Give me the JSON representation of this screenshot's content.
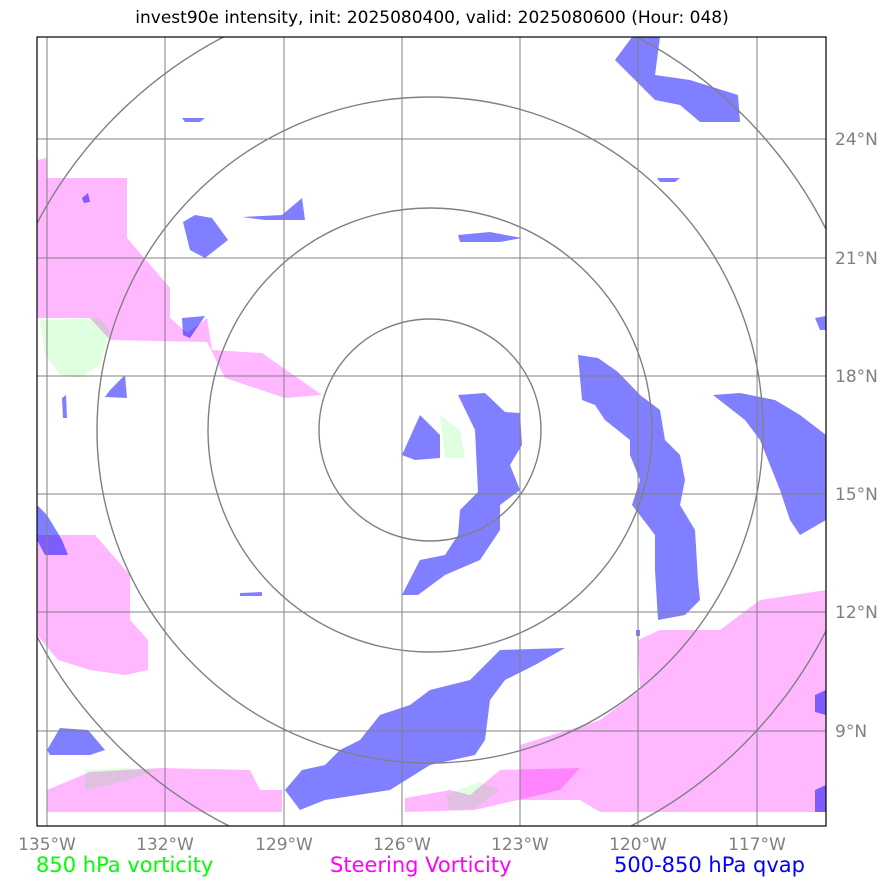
{
  "title": "invest90e intensity, init: 2025080400, valid: 2025080600 (Hour: 048)",
  "legend": {
    "vort850": "850 hPa vorticity",
    "steering": "Steering Vorticity",
    "qvap": "500-850 hPa qvap"
  },
  "colors": {
    "vort850": "#00ff00",
    "steering": "#ff00ff",
    "qvap": "#0000ff",
    "grid": "#808080"
  },
  "axes": {
    "lon_labels": [
      "135°W",
      "132°W",
      "129°W",
      "126°W",
      "123°W",
      "120°W",
      "117°W"
    ],
    "lat_labels": [
      "24°N",
      "21°N",
      "18°N",
      "15°N",
      "12°N",
      "9°N"
    ]
  },
  "storm_center": {
    "lon": "-125.9",
    "lat": "16.6"
  }
}
